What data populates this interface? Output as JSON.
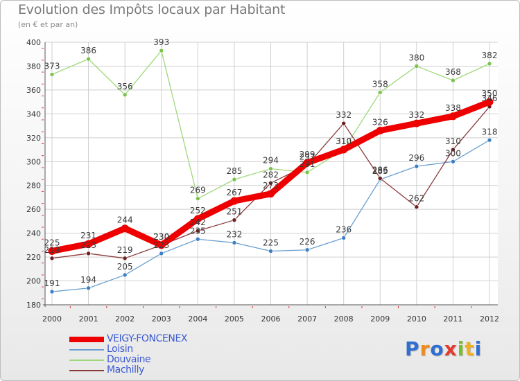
{
  "title": "Evolution des Impôts locaux par Habitant",
  "subtitle": "(en € et par an)",
  "logo": {
    "text": "Proxiti",
    "letters": [
      "P",
      "r",
      "o",
      "x",
      "i",
      "t",
      "i"
    ],
    "colors": [
      "#2f6fd1",
      "#f08a1c",
      "#2f6fd1",
      "#e23b2e",
      "#7bbf2a",
      "#f2b11c",
      "#2f6fd1"
    ]
  },
  "chart_data": {
    "type": "line",
    "title": "Evolution des Impôts locaux par Habitant",
    "subtitle": "(en € et par an)",
    "xlabel": "",
    "ylabel": "",
    "ylim": [
      180,
      400
    ],
    "yticks": [
      180,
      200,
      220,
      240,
      260,
      280,
      300,
      320,
      340,
      360,
      380,
      400
    ],
    "grid": true,
    "legend_position": "bottom-left",
    "x": [
      2000,
      2001,
      2002,
      2003,
      2004,
      2005,
      2006,
      2007,
      2008,
      2009,
      2010,
      2011,
      2012
    ],
    "series": [
      {
        "name": "Loisin",
        "color": "#6a9fcf",
        "point_color": "#3b7fc4",
        "weight": "thin",
        "values": [
          191,
          194,
          205,
          223,
          235,
          232,
          225,
          226,
          236,
          285,
          296,
          300,
          318
        ]
      },
      {
        "name": "Douvaine",
        "color": "#9fd87a",
        "point_color": "#7bc34f",
        "weight": "thin",
        "values": [
          373,
          386,
          356,
          393,
          269,
          285,
          294,
          291,
          310,
          358,
          380,
          368,
          382
        ]
      },
      {
        "name": "Machilly",
        "color": "#8b3a3a",
        "point_color": "#6b1f1f",
        "weight": "thin",
        "values": [
          219,
          223,
          219,
          230,
          242,
          251,
          282,
          297,
          332,
          286,
          262,
          310,
          346
        ]
      },
      {
        "name": "VEIGY-FONCENEX",
        "color": "#ee0000",
        "point_color": "#ee0000",
        "weight": "thick",
        "values": [
          225,
          231,
          244,
          230,
          252,
          267,
          273,
          299,
          310,
          326,
          332,
          338,
          350
        ]
      }
    ],
    "legend_order": [
      "VEIGY-FONCENEX",
      "Loisin",
      "Douvaine",
      "Machilly"
    ]
  }
}
